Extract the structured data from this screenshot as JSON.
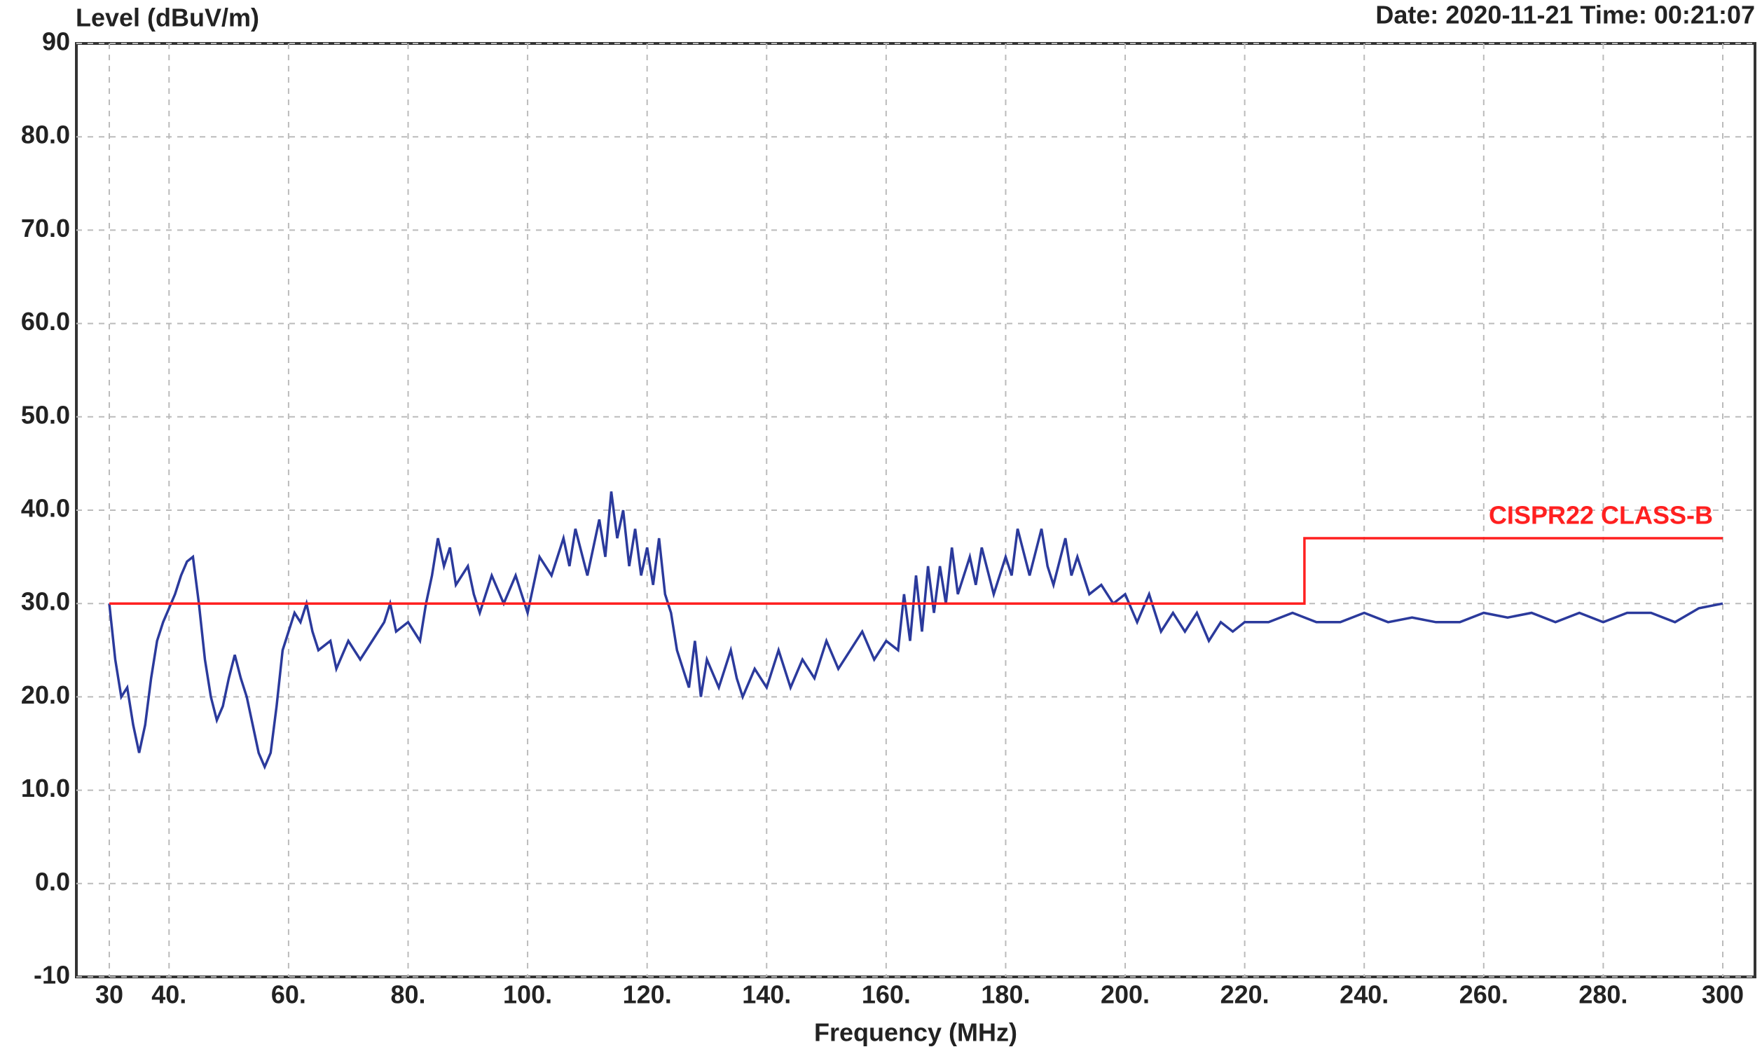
{
  "chart_data": {
    "type": "line",
    "y_axis_label": "Level (dBuV/m)",
    "x_axis_label": "Frequency (MHz)",
    "timestamp": "Date: 2020-11-21  Time: 00:21:07",
    "xlim": [
      30,
      300
    ],
    "ylim": [
      -10,
      90
    ],
    "xticks": [
      30,
      {
        "value": 40,
        "label": "40."
      },
      {
        "value": 60,
        "label": "60."
      },
      {
        "value": 80,
        "label": "80."
      },
      {
        "value": 100,
        "label": "100."
      },
      {
        "value": 120,
        "label": "120."
      },
      {
        "value": 140,
        "label": "140."
      },
      {
        "value": 160,
        "label": "160."
      },
      {
        "value": 180,
        "label": "180."
      },
      {
        "value": 200,
        "label": "200."
      },
      {
        "value": 220,
        "label": "220."
      },
      {
        "value": 240,
        "label": "240."
      },
      {
        "value": 260,
        "label": "260."
      },
      {
        "value": 280,
        "label": "280."
      },
      300
    ],
    "yticks": [
      -10,
      {
        "value": 0,
        "label": "0.0"
      },
      {
        "value": 10,
        "label": "10.0"
      },
      {
        "value": 20,
        "label": "20.0"
      },
      {
        "value": 30,
        "label": "30.0"
      },
      {
        "value": 40,
        "label": "40.0"
      },
      {
        "value": 50,
        "label": "50.0"
      },
      {
        "value": 60,
        "label": "60.0"
      },
      {
        "value": 70,
        "label": "70.0"
      },
      {
        "value": 80,
        "label": "80.0"
      },
      90
    ],
    "grid": true,
    "series": [
      {
        "color": "#2b3a9c",
        "x": [
          30,
          31,
          32,
          33,
          34,
          35,
          36,
          37,
          38,
          39,
          40,
          41,
          42,
          43,
          44,
          45,
          46,
          47,
          48,
          49,
          50,
          51,
          52,
          53,
          54,
          55,
          56,
          57,
          58,
          59,
          60,
          61,
          62,
          63,
          64,
          65,
          67,
          68,
          70,
          72,
          74,
          76,
          77,
          78,
          80,
          82,
          83,
          84,
          85,
          86,
          87,
          88,
          90,
          91,
          92,
          94,
          96,
          98,
          100,
          101,
          102,
          104,
          106,
          107,
          108,
          110,
          112,
          113,
          114,
          115,
          116,
          117,
          118,
          119,
          120,
          121,
          122,
          123,
          124,
          125,
          126,
          127,
          128,
          129,
          130,
          132,
          134,
          135,
          136,
          138,
          140,
          142,
          144,
          146,
          148,
          150,
          152,
          154,
          156,
          158,
          160,
          162,
          163,
          164,
          165,
          166,
          167,
          168,
          169,
          170,
          171,
          172,
          174,
          175,
          176,
          178,
          180,
          181,
          182,
          184,
          186,
          187,
          188,
          190,
          191,
          192,
          194,
          196,
          198,
          200,
          202,
          204,
          206,
          208,
          210,
          212,
          214,
          216,
          218,
          220,
          224,
          228,
          232,
          236,
          240,
          244,
          248,
          252,
          256,
          260,
          264,
          268,
          272,
          276,
          280,
          284,
          288,
          292,
          296,
          300
        ],
        "values": [
          30,
          24,
          20,
          21,
          17,
          14,
          17,
          22,
          26,
          28,
          29.5,
          31,
          33,
          34.5,
          35,
          30,
          24,
          20,
          17.5,
          19,
          22,
          24.5,
          22,
          20,
          17,
          14,
          12.5,
          14,
          19,
          25,
          27,
          29,
          28,
          30,
          27,
          25,
          26,
          23,
          26,
          24,
          26,
          28,
          30,
          27,
          28,
          26,
          30,
          33,
          37,
          34,
          36,
          32,
          34,
          31,
          29,
          33,
          30,
          33,
          29,
          32,
          35,
          33,
          37,
          34,
          38,
          33,
          39,
          35,
          42,
          37,
          40,
          34,
          38,
          33,
          36,
          32,
          37,
          31,
          29,
          25,
          23,
          21,
          26,
          20,
          24,
          21,
          25,
          22,
          20,
          23,
          21,
          25,
          21,
          24,
          22,
          26,
          23,
          25,
          27,
          24,
          26,
          25,
          31,
          26,
          33,
          27,
          34,
          29,
          34,
          30,
          36,
          31,
          35,
          32,
          36,
          31,
          35,
          33,
          38,
          33,
          38,
          34,
          32,
          37,
          33,
          35,
          31,
          32,
          30,
          31,
          28,
          31,
          27,
          29,
          27,
          29,
          26,
          28,
          27,
          28,
          28,
          29,
          28,
          28,
          29,
          28,
          28.5,
          28,
          28,
          29,
          28.5,
          29,
          28,
          29,
          28,
          29,
          29,
          28,
          29.5,
          30
        ]
      },
      {
        "name": "CISPR22 CLASS-B",
        "color": "#ff2020",
        "x": [
          30,
          230,
          230,
          300
        ],
        "values": [
          30,
          30,
          37,
          37
        ]
      }
    ]
  }
}
